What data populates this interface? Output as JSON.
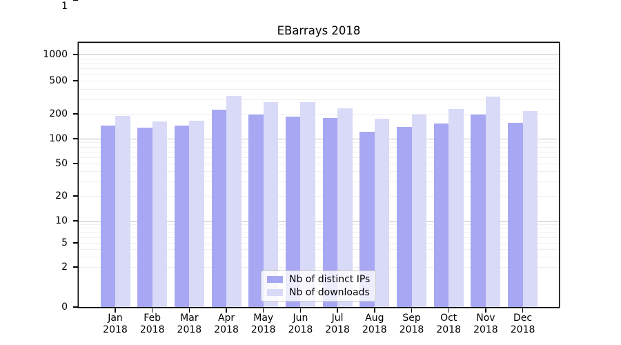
{
  "chart_data": {
    "type": "bar",
    "title": "EBarrays 2018",
    "categories": [
      "Jan",
      "Feb",
      "Mar",
      "Apr",
      "May",
      "Jun",
      "Jul",
      "Aug",
      "Sep",
      "Oct",
      "Nov",
      "Dec"
    ],
    "year": "2018",
    "series": [
      {
        "name": "Nb of distinct IPs",
        "color": "#a7a7f3",
        "values": [
          143,
          137,
          143,
          225,
          198,
          185,
          178,
          122,
          138,
          154,
          198,
          157
        ]
      },
      {
        "name": "Nb of downloads",
        "color": "#d9d9f8",
        "values": [
          190,
          162,
          165,
          330,
          275,
          277,
          232,
          176,
          197,
          228,
          325,
          216
        ]
      }
    ],
    "yticks": [
      0,
      1,
      2,
      5,
      10,
      20,
      50,
      100,
      200,
      500,
      1000
    ],
    "xlabel": "",
    "ylabel": "",
    "y_scale": "log-like with 0 baseline",
    "ylim": [
      0,
      1400
    ],
    "grid": "on",
    "legend_position": "lower-center"
  }
}
